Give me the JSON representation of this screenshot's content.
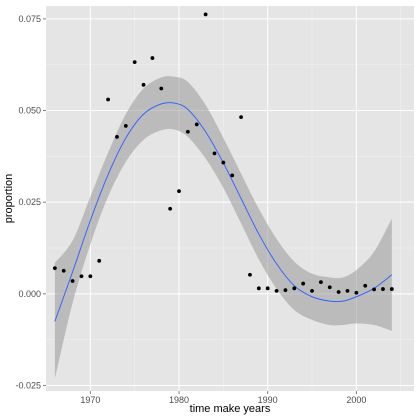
{
  "chart_data": {
    "type": "scatter",
    "title": "",
    "xlabel": "time make years",
    "ylabel": "proportion",
    "xlim": [
      1965,
      2006.5
    ],
    "ylim": [
      -0.0265,
      0.0785
    ],
    "grid": true,
    "x_ticks": [
      1970,
      1980,
      1990,
      2000
    ],
    "x_tick_labels": [
      "1970",
      "1980",
      "1990",
      "2000"
    ],
    "y_ticks": [
      -0.025,
      0,
      0.025,
      0.05,
      0.075
    ],
    "y_tick_labels": [
      "-0.025",
      "0.000",
      "0.025",
      "0.050",
      "0.075"
    ],
    "points": {
      "x": [
        1966,
        1967,
        1968,
        1969,
        1970,
        1971,
        1972,
        1973,
        1974,
        1975,
        1976,
        1977,
        1978,
        1979,
        1980,
        1981,
        1982,
        1983,
        1984,
        1985,
        1986,
        1987,
        1988,
        1989,
        1990,
        1991,
        1992,
        1993,
        1994,
        1995,
        1996,
        1997,
        1998,
        1999,
        2000,
        2001,
        2002,
        2003,
        2004
      ],
      "y": [
        0.007,
        0.0063,
        0.0035,
        0.0048,
        0.0048,
        0.009,
        0.053,
        0.0428,
        0.0458,
        0.0632,
        0.057,
        0.0643,
        0.056,
        0.0232,
        0.028,
        0.0442,
        0.0462,
        0.0762,
        0.0383,
        0.0358,
        0.0323,
        0.0482,
        0.0052,
        0.0015,
        0.0015,
        0.0008,
        0.001,
        0.0015,
        0.0028,
        0.0008,
        0.0032,
        0.0018,
        0.0005,
        0.0008,
        0.0003,
        0.0022,
        0.0012,
        0.0013,
        0.0013
      ]
    },
    "smooth": {
      "x": [
        1966,
        1968,
        1970,
        1972,
        1974,
        1976,
        1978,
        1979.5,
        1981,
        1983,
        1985,
        1987,
        1989,
        1991,
        1993,
        1995,
        1997,
        1998.5,
        2000,
        2002,
        2004
      ],
      "y": [
        -0.0075,
        0.006,
        0.02,
        0.0325,
        0.0425,
        0.049,
        0.0518,
        0.052,
        0.0503,
        0.0442,
        0.0357,
        0.026,
        0.0163,
        0.0082,
        0.0022,
        -0.0008,
        -0.002,
        -0.002,
        -0.0008,
        0.0015,
        0.0052
      ],
      "ci_upper": [
        0.0085,
        0.0145,
        0.0265,
        0.0385,
        0.049,
        0.056,
        0.059,
        0.0592,
        0.0578,
        0.0515,
        0.0425,
        0.0328,
        0.0232,
        0.015,
        0.0088,
        0.0055,
        0.0045,
        0.0045,
        0.0065,
        0.0115,
        0.0205
      ],
      "ci_lower": [
        -0.0232,
        -0.0025,
        0.0135,
        0.0265,
        0.036,
        0.042,
        0.0446,
        0.0448,
        0.0428,
        0.0369,
        0.0289,
        0.0192,
        0.0094,
        0.0014,
        -0.0044,
        -0.0071,
        -0.0085,
        -0.0085,
        -0.0081,
        -0.0085,
        -0.0101
      ]
    },
    "colors": {
      "panel_bg": "#e5e5e5",
      "grid_major": "#ffffff",
      "grid_minor": "#f2f2f2",
      "point": "#000000",
      "line": "#3366ff",
      "ribbon": "#999999"
    }
  }
}
